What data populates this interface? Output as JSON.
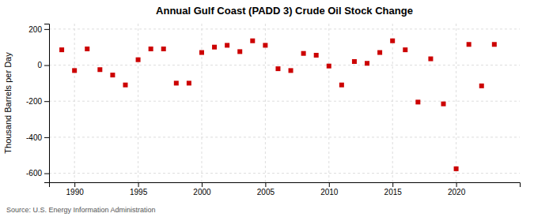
{
  "chart_data": {
    "type": "scatter",
    "title": "Annual Gulf Coast (PADD 3) Crude Oil Stock Change",
    "ylabel": "Thousand Barrels per Day",
    "annotations": [
      "Source: U.S. Energy Information Administration"
    ],
    "x": [
      1989,
      1990,
      1991,
      1992,
      1993,
      1994,
      1995,
      1996,
      1997,
      1998,
      1999,
      2000,
      2001,
      2002,
      2003,
      2004,
      2005,
      2006,
      2007,
      2008,
      2009,
      2010,
      2011,
      2012,
      2013,
      2014,
      2015,
      2016,
      2017,
      2018,
      2019,
      2020,
      2021,
      2022,
      2023
    ],
    "values": [
      85,
      -30,
      90,
      -25,
      -55,
      -110,
      30,
      90,
      90,
      -100,
      -100,
      70,
      100,
      110,
      75,
      135,
      110,
      -20,
      -30,
      65,
      55,
      -5,
      -110,
      20,
      10,
      70,
      135,
      85,
      -205,
      35,
      -215,
      -575,
      115,
      -115,
      115
    ],
    "color": "#cc0000",
    "marker": "square",
    "xlim": [
      1988,
      2025
    ],
    "ylim": [
      -650,
      230
    ],
    "xticks": [
      1990,
      1995,
      2000,
      2005,
      2010,
      2015,
      2020
    ],
    "yticks": [
      -600,
      -400,
      -200,
      0,
      200
    ],
    "grid": true
  }
}
